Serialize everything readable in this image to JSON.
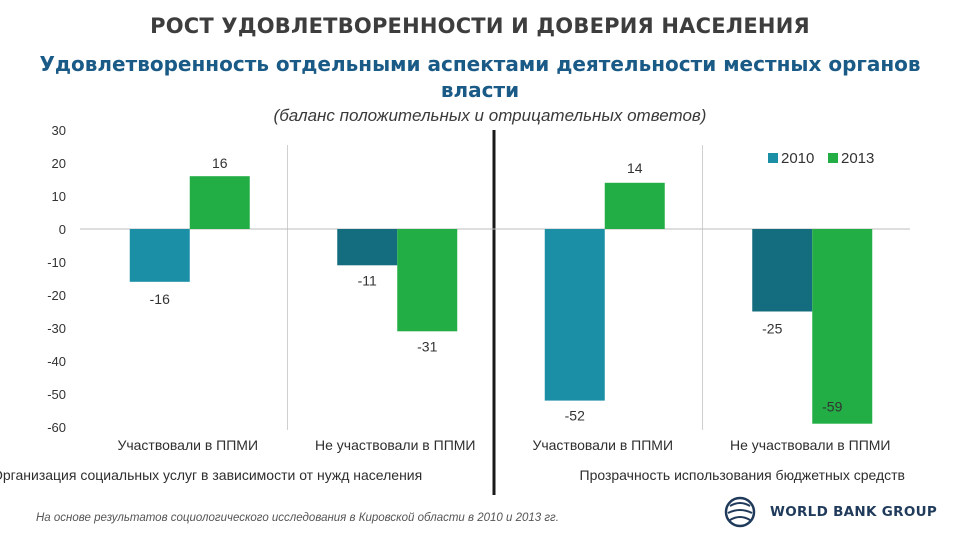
{
  "header": {
    "title": "РОСТ УДОВЛЕТВОРЕННОСТИ И ДОВЕРИЯ  НАСЕЛЕНИЯ",
    "subtitle": "Удовлетворенность отдельными аспектами деятельности местных органов власти",
    "note": "(баланс положительных и отрицательных ответов)"
  },
  "footer": {
    "source": "На основе результатов социологического исследования в Кировской области в 2010 и 2013 гг.",
    "logo_text": "WORLD BANK GROUP"
  },
  "colors": {
    "series_2010": "#1a8fa6",
    "series_2010_dark": "#146d7e",
    "series_2013": "#22ad45"
  },
  "chart_data": {
    "type": "bar",
    "ylim": [
      -60,
      30
    ],
    "yticks": [
      30,
      20,
      10,
      0,
      -10,
      -20,
      -30,
      -40,
      -50,
      -60
    ],
    "categories": [
      "Участвовали в ППМИ",
      "Не участвовали в ППМИ",
      "Участвовали в ППМИ",
      "Не участвовали в ППМИ"
    ],
    "groups": [
      "Организация социальных услуг в зависимости от нужд населения",
      "Прозрачность использования бюджетных средств"
    ],
    "series": [
      {
        "name": "2010",
        "values": [
          -16,
          -11,
          -52,
          -25
        ]
      },
      {
        "name": "2013",
        "values": [
          16,
          -31,
          14,
          -59
        ]
      }
    ],
    "legend": "top-right",
    "grid": false
  }
}
